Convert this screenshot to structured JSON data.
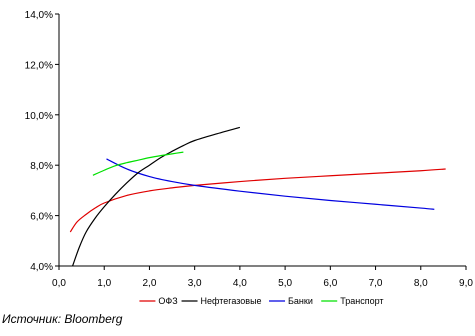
{
  "chart_data": {
    "type": "line",
    "xlim": [
      0,
      9
    ],
    "ylim": [
      4,
      14
    ],
    "x_ticks": [
      0,
      1,
      2,
      3,
      4,
      5,
      6,
      7,
      8,
      9
    ],
    "x_tick_labels": [
      "0,0",
      "1,0",
      "2,0",
      "3,0",
      "4,0",
      "5,0",
      "6,0",
      "7,0",
      "8,0",
      "9,0"
    ],
    "y_ticks": [
      4,
      6,
      8,
      10,
      12,
      14
    ],
    "y_tick_labels": [
      "4,0%",
      "6,0%",
      "8,0%",
      "10,0%",
      "12,0%",
      "14,0%"
    ],
    "grid": false,
    "legend_position": "bottom",
    "series": [
      {
        "name": "ОФЗ",
        "color": "#e00000",
        "points": [
          [
            0.25,
            5.35
          ],
          [
            0.4,
            5.75
          ],
          [
            0.6,
            6.05
          ],
          [
            0.8,
            6.3
          ],
          [
            1.0,
            6.5
          ],
          [
            1.5,
            6.8
          ],
          [
            2.0,
            6.98
          ],
          [
            2.5,
            7.1
          ],
          [
            3.0,
            7.2
          ],
          [
            4.0,
            7.35
          ],
          [
            5.0,
            7.48
          ],
          [
            6.0,
            7.58
          ],
          [
            7.0,
            7.68
          ],
          [
            8.0,
            7.78
          ],
          [
            8.55,
            7.85
          ]
        ]
      },
      {
        "name": "Нефтегазовые",
        "color": "#000000",
        "points": [
          [
            0.3,
            4.0
          ],
          [
            0.45,
            4.75
          ],
          [
            0.6,
            5.35
          ],
          [
            0.8,
            5.9
          ],
          [
            1.0,
            6.35
          ],
          [
            1.25,
            6.85
          ],
          [
            1.5,
            7.3
          ],
          [
            1.75,
            7.7
          ],
          [
            2.0,
            8.0
          ],
          [
            2.25,
            8.3
          ],
          [
            2.5,
            8.55
          ],
          [
            2.75,
            8.78
          ],
          [
            3.0,
            8.98
          ],
          [
            3.5,
            9.25
          ],
          [
            4.0,
            9.5
          ]
        ]
      },
      {
        "name": "Банки",
        "color": "#0000e0",
        "points": [
          [
            1.05,
            8.25
          ],
          [
            1.5,
            7.85
          ],
          [
            2.0,
            7.55
          ],
          [
            2.5,
            7.35
          ],
          [
            3.0,
            7.2
          ],
          [
            4.0,
            6.97
          ],
          [
            5.0,
            6.77
          ],
          [
            6.0,
            6.6
          ],
          [
            7.0,
            6.45
          ],
          [
            8.0,
            6.3
          ],
          [
            8.3,
            6.25
          ]
        ]
      },
      {
        "name": "Транспорт",
        "color": "#00e000",
        "points": [
          [
            0.75,
            7.6
          ],
          [
            1.0,
            7.8
          ],
          [
            1.25,
            7.98
          ],
          [
            1.5,
            8.1
          ],
          [
            1.75,
            8.2
          ],
          [
            2.0,
            8.3
          ],
          [
            2.25,
            8.38
          ],
          [
            2.5,
            8.45
          ],
          [
            2.75,
            8.52
          ]
        ]
      }
    ]
  },
  "source_note": "Источник: Bloomberg"
}
